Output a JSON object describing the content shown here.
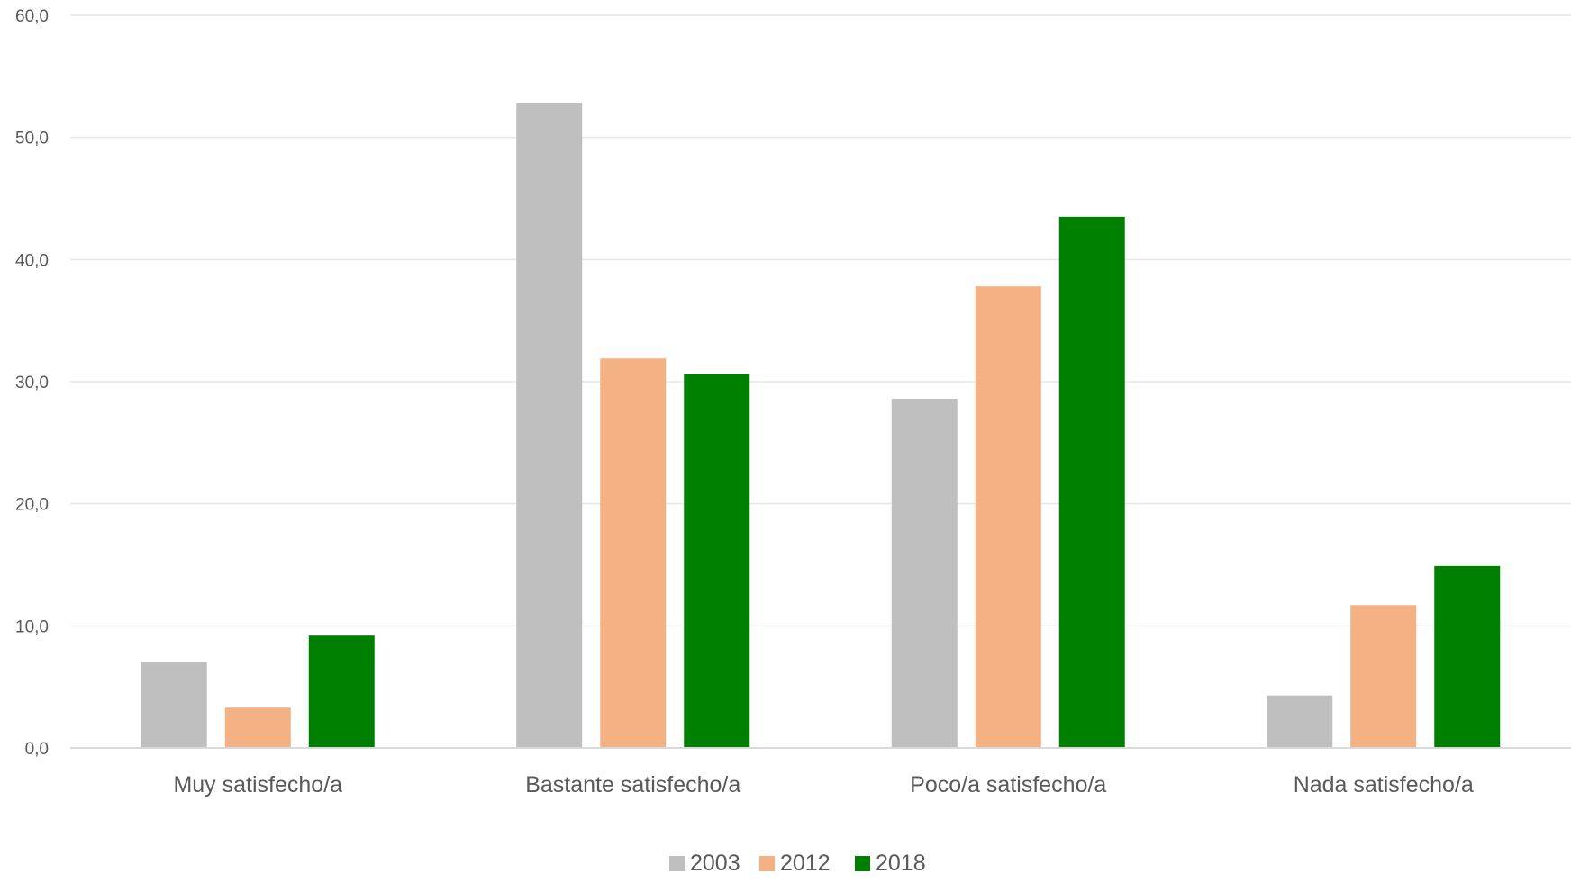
{
  "chart_data": {
    "type": "bar",
    "title": "",
    "xlabel": "",
    "ylabel": "",
    "categories": [
      "Muy satisfecho/a",
      "Bastante satisfecho/a",
      "Poco/a satisfecho/a",
      "Nada satisfecho/a"
    ],
    "series": [
      {
        "name": "2003",
        "color": "#bfbfbf",
        "values": [
          7.0,
          52.8,
          28.6,
          4.3
        ]
      },
      {
        "name": "2012",
        "color": "#f4b183",
        "values": [
          3.3,
          31.9,
          37.8,
          11.7
        ]
      },
      {
        "name": "2018",
        "color": "#008000",
        "values": [
          9.2,
          30.6,
          43.5,
          14.9
        ]
      }
    ],
    "ylim": [
      0,
      60
    ],
    "yticks": [
      0,
      10,
      20,
      30,
      40,
      50,
      60
    ],
    "ytick_labels": [
      "0,0",
      "10,0",
      "20,0",
      "30,0",
      "40,0",
      "50,0",
      "60,0"
    ],
    "grid": true,
    "legend_position": "bottom-center"
  }
}
